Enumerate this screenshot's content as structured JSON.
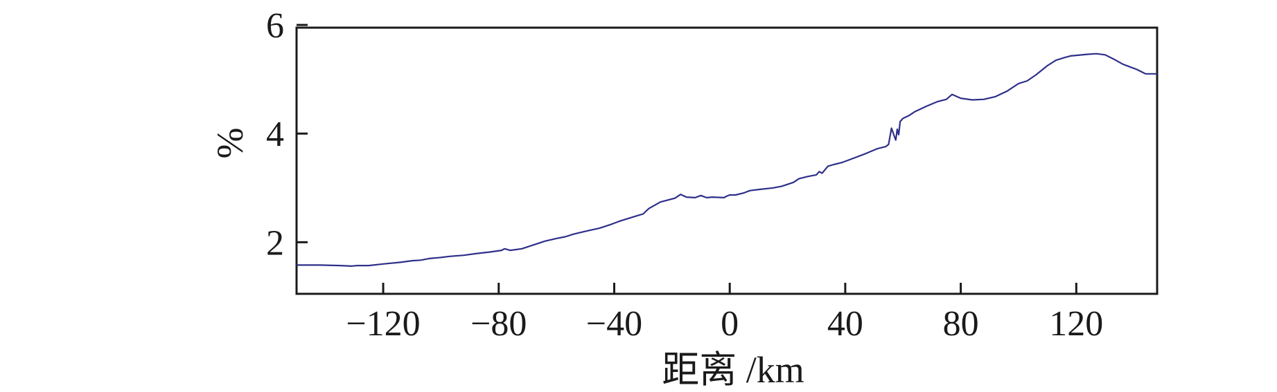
{
  "chart_data": {
    "type": "line",
    "title": "",
    "xlabel": "距离 /km",
    "ylabel": "%",
    "xlim": [
      -150,
      148
    ],
    "ylim": [
      1.05,
      5.95
    ],
    "xticks": [
      -120,
      -80,
      -40,
      0,
      40,
      80,
      120
    ],
    "xtick_labels": [
      "−120",
      "−80",
      "−40",
      "0",
      "40",
      "80",
      "120"
    ],
    "yticks": [
      2,
      4,
      6
    ],
    "ytick_labels": [
      "2",
      "4",
      "6"
    ],
    "grid": false,
    "legend": "none",
    "colors": {
      "series": "#2e2e8a",
      "axes": "#1a1a1a"
    },
    "series": [
      {
        "x": [
          -150,
          -142,
          -135,
          -131,
          -129,
          -125,
          -120,
          -114,
          -110,
          -107,
          -104,
          -100,
          -97,
          -92,
          -88,
          -83,
          -79,
          -78,
          -76,
          -72,
          -68,
          -64,
          -60,
          -57,
          -54,
          -50,
          -45,
          -41,
          -38,
          -35,
          -32,
          -30,
          -28,
          -24,
          -19,
          -17,
          -15,
          -12,
          -10,
          -8,
          -6,
          -2,
          -1,
          0,
          2,
          5,
          7,
          10,
          15,
          18,
          22,
          24,
          27,
          30,
          31,
          32,
          34,
          36,
          39,
          43,
          47,
          51,
          54,
          55,
          56,
          57,
          57.5,
          58,
          58.5,
          59,
          60,
          62,
          64,
          68,
          72,
          75,
          77,
          80,
          84,
          88,
          92,
          96,
          100,
          103,
          106,
          110,
          113,
          116,
          118,
          120,
          124,
          127,
          130,
          133,
          136,
          138,
          141,
          144,
          148
        ],
        "y": [
          1.58,
          1.58,
          1.57,
          1.56,
          1.57,
          1.57,
          1.6,
          1.63,
          1.66,
          1.67,
          1.7,
          1.72,
          1.74,
          1.76,
          1.79,
          1.82,
          1.85,
          1.88,
          1.85,
          1.88,
          1.95,
          2.02,
          2.07,
          2.1,
          2.15,
          2.2,
          2.26,
          2.33,
          2.39,
          2.44,
          2.49,
          2.52,
          2.62,
          2.74,
          2.81,
          2.88,
          2.83,
          2.82,
          2.86,
          2.82,
          2.83,
          2.82,
          2.85,
          2.87,
          2.87,
          2.91,
          2.95,
          2.97,
          3.0,
          3.03,
          3.1,
          3.17,
          3.21,
          3.24,
          3.3,
          3.27,
          3.4,
          3.43,
          3.47,
          3.55,
          3.63,
          3.72,
          3.76,
          3.8,
          4.1,
          3.95,
          3.88,
          4.08,
          3.98,
          4.22,
          4.28,
          4.33,
          4.4,
          4.5,
          4.59,
          4.63,
          4.72,
          4.65,
          4.62,
          4.63,
          4.68,
          4.78,
          4.92,
          4.97,
          5.08,
          5.25,
          5.35,
          5.4,
          5.43,
          5.44,
          5.46,
          5.47,
          5.45,
          5.37,
          5.28,
          5.24,
          5.18,
          5.1,
          5.1
        ]
      }
    ]
  }
}
